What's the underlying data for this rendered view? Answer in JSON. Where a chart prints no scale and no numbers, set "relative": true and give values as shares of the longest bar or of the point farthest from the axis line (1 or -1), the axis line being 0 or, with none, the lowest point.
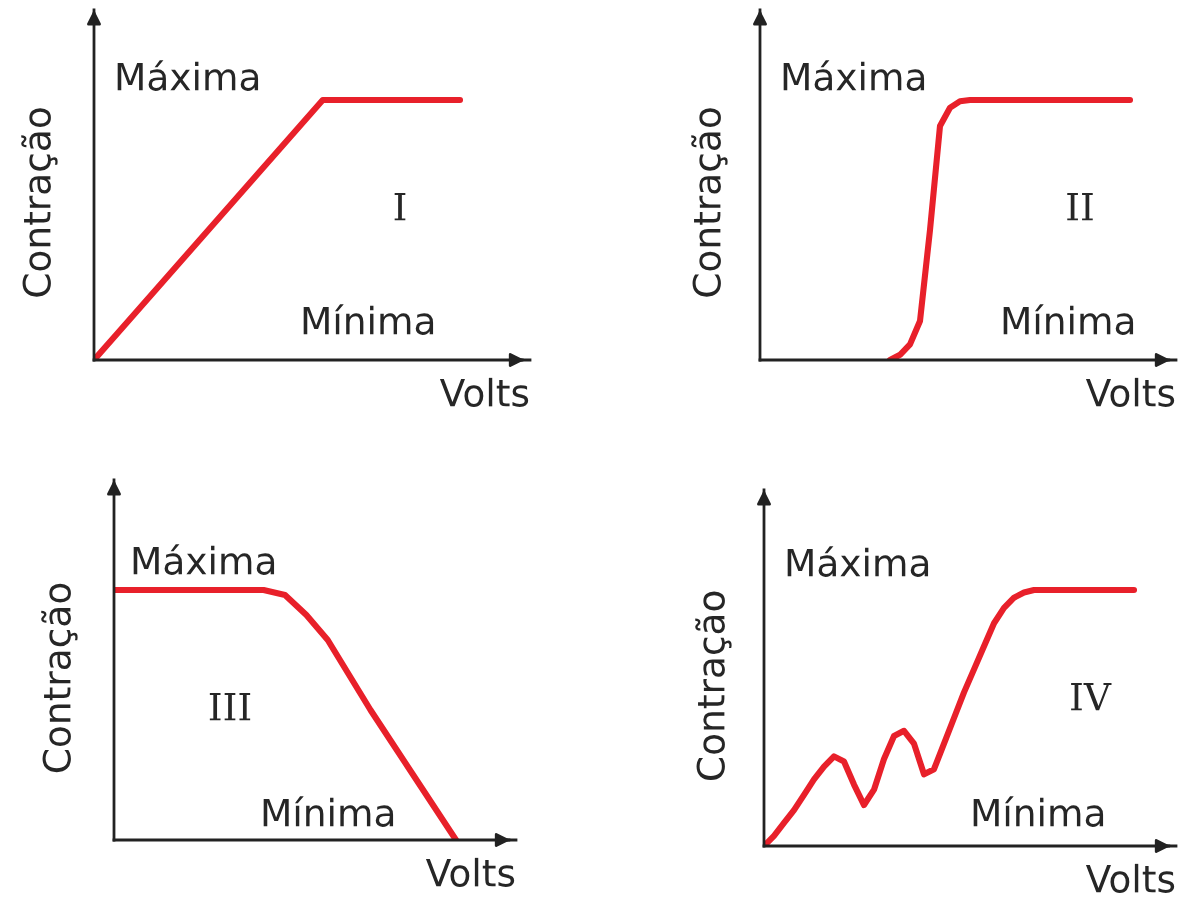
{
  "chart_data": [
    {
      "type": "line",
      "relative": true,
      "xlabel": "Volts",
      "ylabel": "Contração",
      "grid": false,
      "legend": false,
      "marker": "none",
      "line_style": "solid",
      "categories": [
        null,
        null,
        null,
        null,
        null,
        null,
        null,
        null,
        null,
        null,
        null,
        null,
        null,
        null,
        null,
        null,
        null
      ],
      "series": [
        {
          "color": "#e8202a",
          "values": [
            0,
            0.1,
            0.2,
            0.3,
            0.4,
            0.5,
            0.6,
            0.7,
            0.8,
            0.9,
            1,
            1,
            1,
            1,
            1,
            1,
            1
          ]
        }
      ],
      "annotations": [
        "Máxima",
        "I",
        "Mínima"
      ]
    },
    {
      "type": "line",
      "relative": true,
      "xlabel": "Volts",
      "ylabel": "Contração",
      "grid": false,
      "legend": false,
      "marker": "none",
      "line_style": "solid",
      "categories": [
        null,
        null,
        null,
        null,
        null,
        null,
        null,
        null,
        null,
        null,
        null,
        null,
        null,
        null,
        null,
        null,
        null,
        null,
        null,
        null,
        null,
        null,
        null,
        null,
        null,
        null,
        null,
        null,
        null,
        null,
        null,
        null,
        null,
        null,
        null,
        null,
        null,
        null
      ],
      "series": [
        {
          "color": "#e8202a",
          "values": [
            null,
            null,
            null,
            null,
            null,
            null,
            null,
            null,
            null,
            null,
            null,
            null,
            null,
            0,
            0.02,
            0.06,
            0.15,
            0.5,
            0.9,
            0.97,
            0.995,
            1,
            1,
            1,
            1,
            1,
            1,
            1,
            1,
            1,
            1,
            1,
            1,
            1,
            1,
            1,
            1,
            1
          ]
        }
      ],
      "annotations": [
        "Máxima",
        "II",
        "Mínima"
      ]
    },
    {
      "type": "line",
      "relative": true,
      "xlabel": "Volts",
      "ylabel": "Contração",
      "grid": false,
      "legend": false,
      "marker": "none",
      "line_style": "solid",
      "categories": [
        null,
        null,
        null,
        null,
        null,
        null,
        null,
        null,
        null,
        null,
        null,
        null,
        null,
        null,
        null,
        null,
        null
      ],
      "series": [
        {
          "color": "#e8202a",
          "values": [
            1,
            1,
            1,
            1,
            1,
            1,
            1,
            1,
            0.98,
            0.9,
            0.8,
            0.66,
            0.52,
            0.39,
            0.26,
            0.13,
            0
          ]
        }
      ],
      "annotations": [
        "Máxima",
        "III",
        "Mínima"
      ]
    },
    {
      "type": "line",
      "relative": true,
      "xlabel": "Volts",
      "ylabel": "Contração",
      "grid": false,
      "legend": false,
      "marker": "none",
      "line_style": "solid",
      "categories": [
        null,
        null,
        null,
        null,
        null,
        null,
        null,
        null,
        null,
        null,
        null,
        null,
        null,
        null,
        null,
        null,
        null,
        null,
        null,
        null,
        null,
        null,
        null,
        null,
        null,
        null,
        null,
        null,
        null,
        null,
        null,
        null,
        null,
        null,
        null,
        null,
        null,
        null
      ],
      "series": [
        {
          "color": "#e8202a",
          "values": [
            0,
            0.04,
            0.09,
            0.14,
            0.2,
            0.26,
            0.31,
            0.35,
            0.33,
            0.24,
            0.16,
            0.22,
            0.34,
            0.43,
            0.45,
            0.4,
            0.28,
            0.3,
            0.4,
            0.5,
            0.6,
            0.69,
            0.78,
            0.87,
            0.93,
            0.97,
            0.99,
            1,
            1,
            1,
            1,
            1,
            1,
            1,
            1,
            1,
            1,
            1
          ]
        }
      ],
      "annotations": [
        "Máxima",
        "IV",
        "Mínima"
      ]
    }
  ]
}
